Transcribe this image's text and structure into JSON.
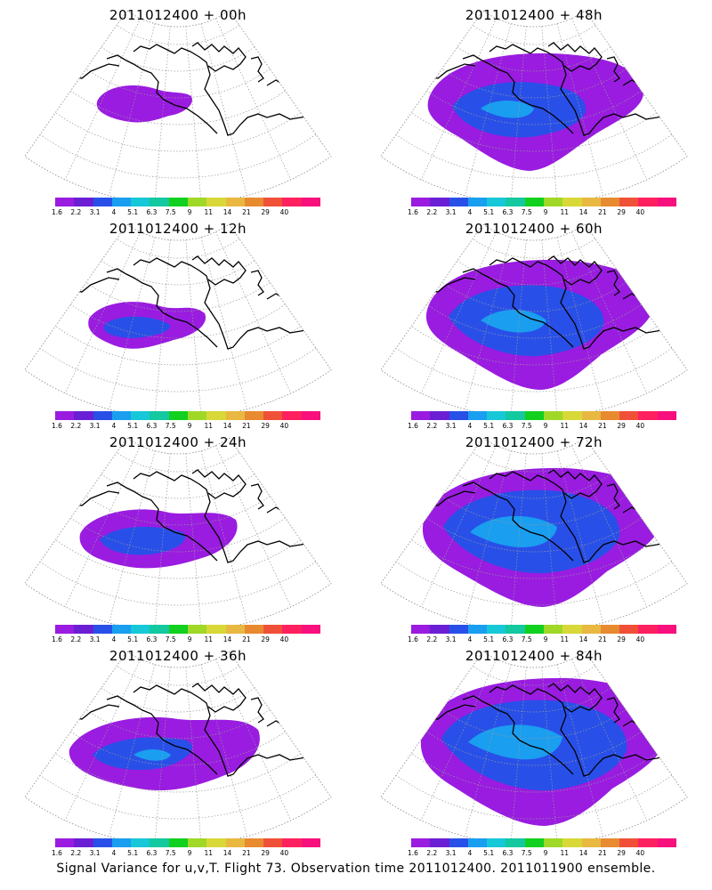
{
  "panels": [
    {
      "title": "2011012400 + 00h",
      "level": 0
    },
    {
      "title": "2011012400 + 48h",
      "level": 4
    },
    {
      "title": "2011012400 + 12h",
      "level": 1
    },
    {
      "title": "2011012400 + 60h",
      "level": 5
    },
    {
      "title": "2011012400 + 24h",
      "level": 2
    },
    {
      "title": "2011012400 + 72h",
      "level": 6
    },
    {
      "title": "2011012400 + 36h",
      "level": 3
    },
    {
      "title": "2011012400 + 84h",
      "level": 7
    }
  ],
  "colorbar": {
    "colors": [
      "#9a1ce0",
      "#6a1fd4",
      "#2850e8",
      "#1a9ef0",
      "#16c8d8",
      "#14c8a0",
      "#12d020",
      "#a0d828",
      "#d8d838",
      "#e8b840",
      "#e88a30",
      "#f05038",
      "#ff2060",
      "#f8107c"
    ],
    "labels": [
      "1.6",
      "2.2",
      "3.1",
      "4",
      "5.1",
      "6.3",
      "7.5",
      "9",
      "11",
      "14",
      "21",
      "29",
      "40"
    ]
  },
  "footer": "Signal Variance for u,v,T. Flight 73. Observation time 2011012400. 2011011900 ensemble."
}
